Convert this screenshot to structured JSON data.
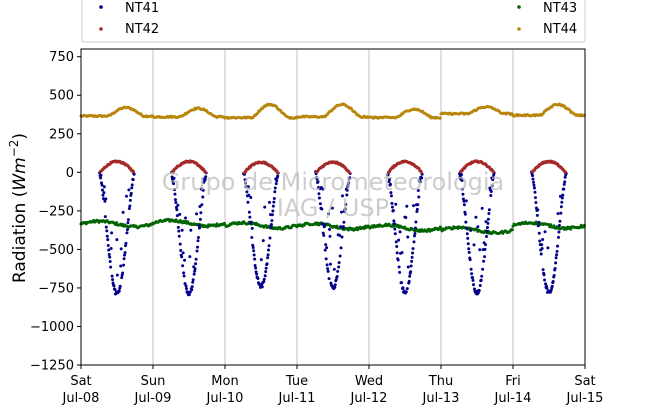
{
  "chart_data": {
    "type": "scatter",
    "title": "",
    "xlabel": "",
    "ylabel_prefix": "Radiation (",
    "ylabel_var": "Wm",
    "ylabel_exp": "−2",
    "ylabel_suffix": ")",
    "ylim": [
      -1250,
      800
    ],
    "yticks": [
      -1250,
      -1000,
      -750,
      -500,
      -250,
      0,
      250,
      500,
      750
    ],
    "ytick_labels": [
      "−1250",
      "−1000",
      "−750",
      "−500",
      "−250",
      "0",
      "250",
      "500",
      "750"
    ],
    "xlim": [
      "2023-07-08",
      "2023-07-15"
    ],
    "xticks": [
      {
        "day": "Sat",
        "date": "Jul-08"
      },
      {
        "day": "Sun",
        "date": "Jul-09"
      },
      {
        "day": "Mon",
        "date": "Jul-10"
      },
      {
        "day": "Tue",
        "date": "Jul-11"
      },
      {
        "day": "Wed",
        "date": "Jul-12"
      },
      {
        "day": "Thu",
        "date": "Jul-13"
      },
      {
        "day": "Fri",
        "date": "Jul-14"
      },
      {
        "day": "Sat",
        "date": "Jul-15"
      }
    ],
    "grid": "x",
    "legend_position": "top",
    "watermark_line1": "Grupo de Micrometeorologia",
    "watermark_line2": "IAG / USP",
    "series": [
      {
        "name": "NT41",
        "color": "#00008b",
        "description": "daytime negative trough, 0 at ~06h and ~18h, min near noon",
        "daily_minimum": [
          -790,
          -790,
          -740,
          -750,
          -780,
          -780,
          -780
        ]
      },
      {
        "name": "NT42",
        "color": "#a52a2a",
        "description": "daytime small positive arc ~06h-18h",
        "daily_peak": [
          70,
          70,
          65,
          65,
          70,
          70,
          70
        ]
      },
      {
        "name": "NT43",
        "color": "#006400",
        "description": "continuous near-constant level",
        "daily_level": [
          -335,
          -330,
          -345,
          -350,
          -360,
          -375,
          -345
        ]
      },
      {
        "name": "NT44",
        "color": "#b8860b",
        "description": "continuous, daily maxima in afternoon",
        "daily_base": [
          365,
          360,
          355,
          360,
          355,
          380,
          370
        ],
        "daily_peak": [
          420,
          415,
          440,
          440,
          410,
          425,
          440
        ]
      }
    ]
  }
}
